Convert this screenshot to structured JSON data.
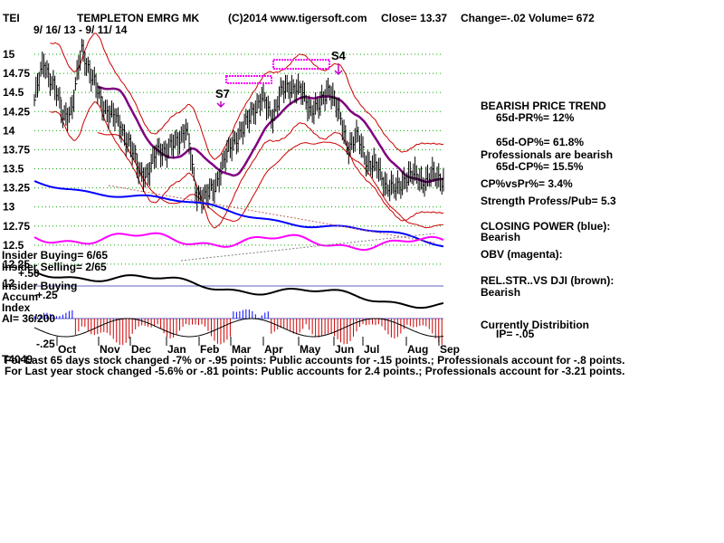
{
  "header": {
    "ticker": "TEI",
    "name": "TEMPLETON EMRG MK",
    "copyright": "(C)2014 www.tigersoft.com",
    "close": "Close=  13.37",
    "change": "Change=-.02",
    "volume": "Volume= 672",
    "date_range": "9/ 16/ 13 - 9/ 11/ 14"
  },
  "chart_data": {
    "type": "line",
    "price_axis": {
      "ticks": [
        "15",
        "14.75",
        "14.5",
        "14.25",
        "14",
        "13.75",
        "13.5",
        "13.25",
        "13",
        "12.75",
        "12.5",
        "12.25",
        "12"
      ],
      "ylim": [
        12,
        15.1
      ]
    },
    "months": [
      "Oct",
      "Nov",
      "Dec",
      "Jan",
      "Feb",
      "Mar",
      "Apr",
      "May",
      "Jun",
      "Jul",
      "Aug",
      "Sep"
    ],
    "signals": [
      {
        "label": "S7"
      },
      {
        "label": "S4"
      }
    ],
    "indicator_axis": {
      "ticks": [
        "+.50",
        "+.25",
        "-.25"
      ]
    },
    "price_close": [
      14.4,
      14.9,
      14.6,
      14.2,
      14.3,
      15.1,
      14.7,
      14.4,
      14.2,
      14.1,
      13.8,
      13.5,
      13.4,
      13.8,
      13.7,
      13.9,
      14.0,
      13.2,
      13.1,
      13.3,
      13.6,
      13.9,
      14.0,
      14.3,
      14.4,
      14.2,
      14.5,
      14.6,
      14.5,
      14.3,
      14.3,
      14.6,
      14.2,
      13.8,
      13.9,
      13.6,
      13.5,
      13.3,
      13.2,
      13.4,
      13.4,
      13.35,
      13.4,
      13.37
    ]
  },
  "right_panel": {
    "trend": "BEARISH PRICE TREND",
    "pr": "65d-PR%= 12%",
    "op": "65d-OP%= 61.8%",
    "pros": "Professionals are bearish",
    "cp": "65d-CP%= 15.5%",
    "cpvspr": "CP%vsPr%=  3.4%",
    "strength": "Strength Profess/Pub= 5.3",
    "closing_power": "CLOSING POWER (blue):",
    "closing_power_val": "Bearish",
    "obv": "OBV (magenta):",
    "relstr": "REL.STR..VS DJI (brown):",
    "relstr_val": "Bearish",
    "distribution": "Currently Distribition",
    "ip": "IP= -.05"
  },
  "left_labels": {
    "insider_buying": "Insider Buying= 6/65",
    "insider_selling": "Insider Selling= 2/65",
    "accum_1": "Insider Buying",
    "accum_2": "Accum",
    "accum_3": "Index",
    "ai": "AI= 36/200",
    "t4049": "T4049"
  },
  "footer": {
    "line1": "For Last 65 days stock changed -7% or -.95 points:  Public accounts for -.15 points.;  Professionals account for -.8 points.",
    "line2": "For Last year stock changed -5.6% or -.81 points:  Public accounts for  2.4 points.;  Professionals account for -3.21 points."
  },
  "colors": {
    "price": "#000000",
    "band": "#cc0000",
    "ma": "#800080",
    "cp": "#0000ff",
    "obv": "#ff00ff",
    "relstr": "#000000",
    "buy": "#0000ff",
    "sell": "#cc0000",
    "grid": "#00aa00"
  }
}
